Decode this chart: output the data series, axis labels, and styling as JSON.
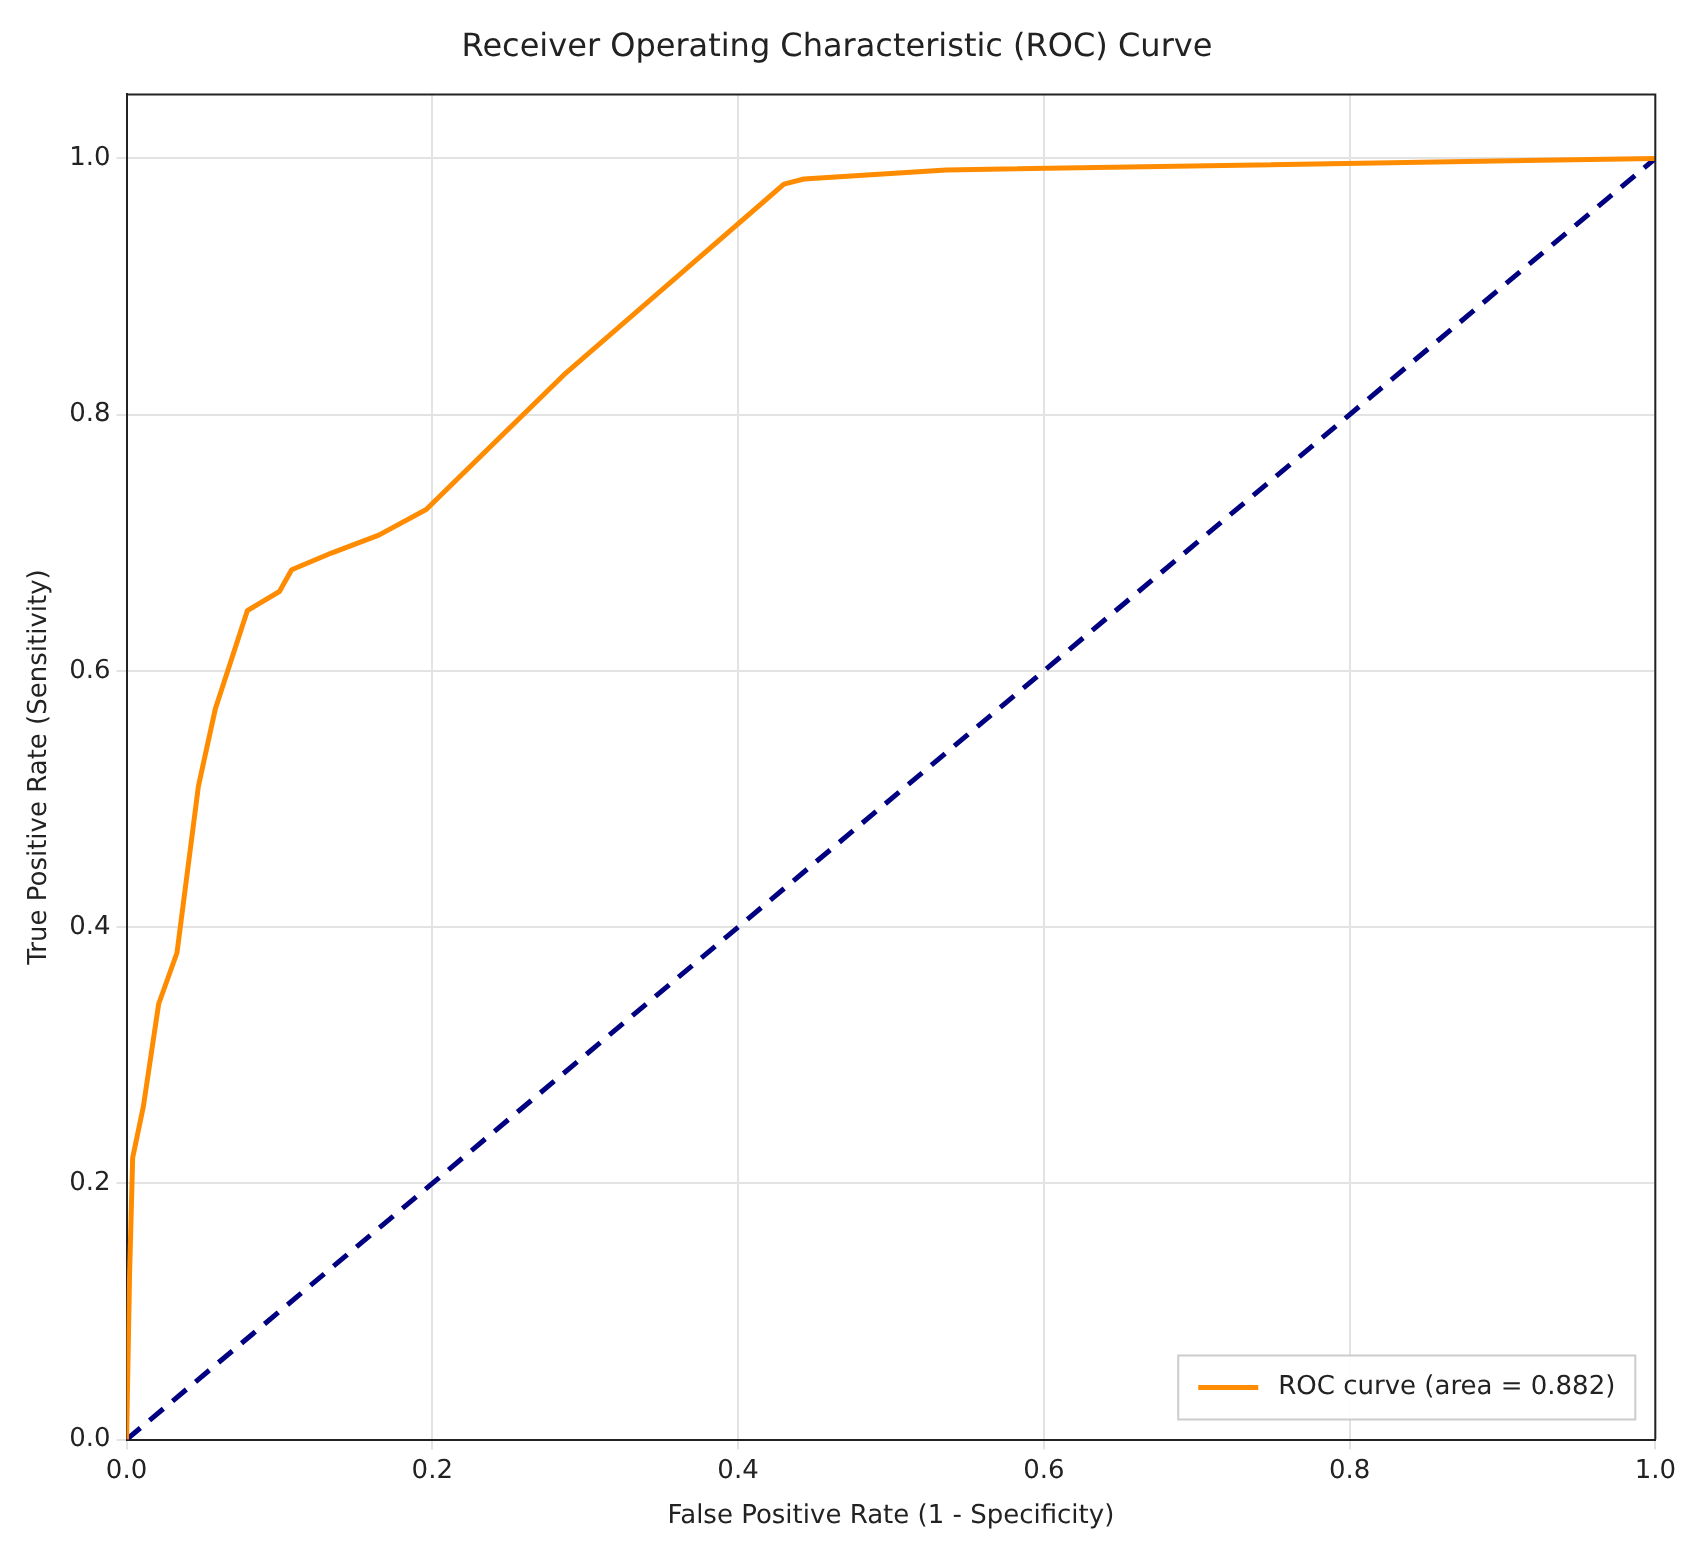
{
  "chart_data": {
    "type": "line",
    "title": "Receiver Operating Characteristic (ROC) Curve",
    "xlabel": "False Positive Rate (1 - Specificity)",
    "ylabel": "True Positive Rate (Sensitivity)",
    "xlim": [
      0,
      1
    ],
    "ylim": [
      0,
      1.05
    ],
    "xticks": [
      {
        "value": 0,
        "label": "0.0"
      },
      {
        "value": 0.2,
        "label": "0.2"
      },
      {
        "value": 0.4,
        "label": "0.4"
      },
      {
        "value": 0.6,
        "label": "0.6"
      },
      {
        "value": 0.8,
        "label": "0.8"
      },
      {
        "value": 1,
        "label": "1.0"
      }
    ],
    "yticks": [
      {
        "value": 0,
        "label": "0.0"
      },
      {
        "value": 0.2,
        "label": "0.2"
      },
      {
        "value": 0.4,
        "label": "0.4"
      },
      {
        "value": 0.6,
        "label": "0.6"
      },
      {
        "value": 0.8,
        "label": "0.8"
      },
      {
        "value": 1,
        "label": "1.0"
      }
    ],
    "grid": true,
    "legend": "bottom right",
    "marker": "none",
    "series": [
      {
        "name": "ROC curve (area = 0.882)",
        "color": "#ff8c00",
        "line_style": "solid",
        "x": [
          0,
          0.002,
          0.004,
          0.011,
          0.021,
          0.033,
          0.047,
          0.058,
          0.079,
          0.1,
          0.108,
          0.134,
          0.165,
          0.196,
          0.286,
          0.43,
          0.443,
          0.536,
          1
        ],
        "values": [
          0,
          0.13,
          0.22,
          0.26,
          0.34,
          0.38,
          0.51,
          0.57,
          0.647,
          0.662,
          0.679,
          0.692,
          0.706,
          0.726,
          0.831,
          0.98,
          0.984,
          0.991,
          1
        ]
      },
      {
        "color": "#000080",
        "line_style": "dashed",
        "x": [
          0,
          1
        ],
        "values": [
          0,
          1
        ]
      }
    ]
  }
}
